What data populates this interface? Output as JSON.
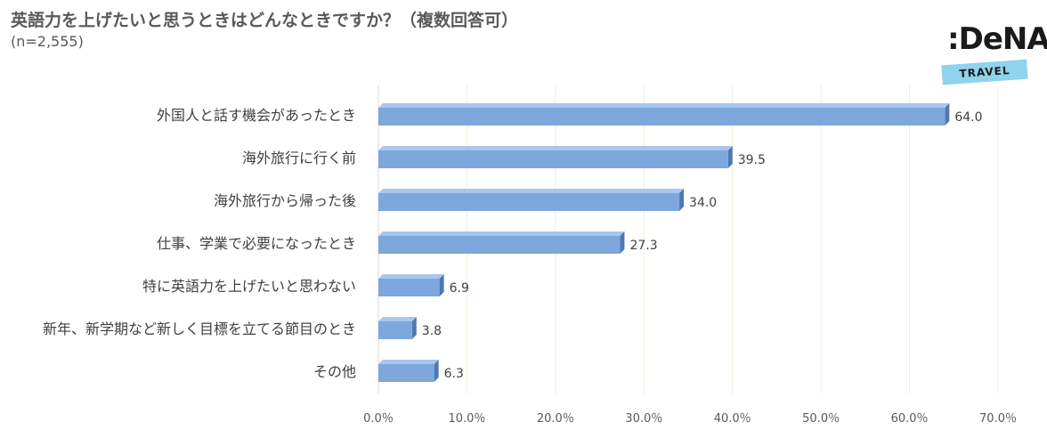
{
  "header": {
    "title": "英語力を上げたいと思うときはどんなときですか？（複数回答可）",
    "sample": "(n=2,555)"
  },
  "logo": {
    "brand": ":DeNA",
    "sub": "TRAVEL"
  },
  "colors": {
    "bar": "#7da7dd",
    "bar_top": "#a9c6ec",
    "bar_side": "#4f78b0",
    "grid": "#f4ecd8"
  },
  "chart_data": {
    "type": "bar",
    "orientation": "horizontal",
    "title": "英語力を上げたいと思うときはどんなときですか？（複数回答可）",
    "categories": [
      "外国人と話す機会があったとき",
      "海外旅行に行く前",
      "海外旅行から帰った後",
      "仕事、学業で必要になったとき",
      "特に英語力を上げたいと思わない",
      "新年、新学期など新しく目標を立てる節目のとき",
      "その他"
    ],
    "values": [
      64.0,
      39.5,
      34.0,
      27.3,
      6.9,
      3.8,
      6.3
    ],
    "value_labels": [
      "64.0",
      "39.5",
      "34.0",
      "27.3",
      "6.9",
      "3.8",
      "6.3"
    ],
    "xlim": [
      0,
      70
    ],
    "ticks": [
      0,
      10,
      20,
      30,
      40,
      50,
      60,
      70
    ],
    "tick_labels": [
      "0.0％",
      "10.0％",
      "20.0％",
      "30.0％",
      "40.0％",
      "50.0％",
      "60.0％",
      "70.0％"
    ],
    "grid": true,
    "legend": "none"
  }
}
